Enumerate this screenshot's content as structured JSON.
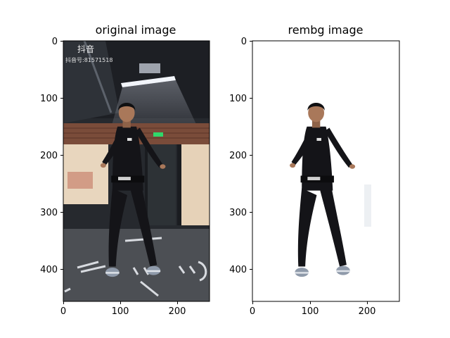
{
  "panels": [
    {
      "title": "original image",
      "watermark_brand": "抖音",
      "watermark_id": "抖音号:81571518",
      "x_ticks": [
        "0",
        "100",
        "200"
      ],
      "y_ticks": [
        "0",
        "100",
        "200",
        "300",
        "400"
      ],
      "background_description": "gym/studio interior with ceiling lights, glass doors, exit sign and painted floor markings",
      "subject_description": "woman in black athletic outfit dancing with arms outstretched"
    },
    {
      "title": "rembg image",
      "x_ticks": [
        "0",
        "100",
        "200"
      ],
      "y_ticks": [
        "0",
        "100",
        "200",
        "300",
        "400"
      ],
      "background_description": "white (background removed)",
      "subject_description": "same woman cut out on white background"
    }
  ],
  "colors": {
    "outfit": "#141418",
    "skin": "#a9785a",
    "room_dark": "#26292e",
    "ceiling": "#1d1f24",
    "floor": "#4c4f54",
    "door_light": "#e8d6be",
    "brick": "#7a4c3a",
    "shoe": "#8f9aaa"
  }
}
